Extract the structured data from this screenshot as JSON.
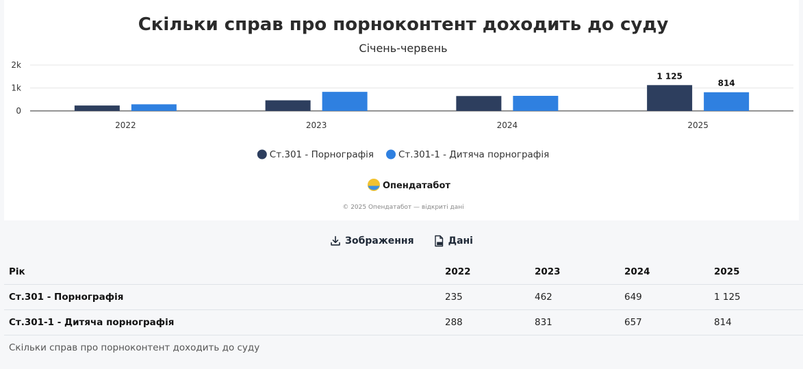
{
  "chart_data": {
    "type": "bar",
    "title": "Скільки справ про порноконтент доходить до суду",
    "subtitle": "Січень-червень",
    "categories": [
      "2022",
      "2023",
      "2024",
      "2025"
    ],
    "series": [
      {
        "name": "Ст.301 - Порнографія",
        "color": "#2d3e5e",
        "values": [
          235,
          462,
          649,
          1125
        ],
        "data_labels": [
          null,
          null,
          null,
          "1 125"
        ]
      },
      {
        "name": "Ст.301-1 - Дитяча порнографія",
        "color": "#2f80e0",
        "values": [
          288,
          831,
          657,
          814
        ],
        "data_labels": [
          null,
          null,
          null,
          "814"
        ]
      }
    ],
    "y_ticks": [
      {
        "value": 0,
        "label": "0"
      },
      {
        "value": 1000,
        "label": "1k"
      },
      {
        "value": 2000,
        "label": "2k"
      }
    ],
    "ylim": [
      0,
      2000
    ],
    "grid": true,
    "legend_position": "bottom-center"
  },
  "branding": {
    "logo_text": "Опендатабот",
    "credit": "© 2025 Опендатабот — відкриті дані"
  },
  "actions": {
    "image_label": "Зображення",
    "data_label": "Дані"
  },
  "table": {
    "headers": [
      "Рік",
      "2022",
      "2023",
      "2024",
      "2025"
    ],
    "rows": [
      [
        "Ст.301 - Порнографія",
        "235",
        "462",
        "649",
        "1 125"
      ],
      [
        "Ст.301-1 - Дитяча порнографія",
        "288",
        "831",
        "657",
        "814"
      ]
    ]
  },
  "caption": "Скільки справ про порноконтент доходить до суду"
}
